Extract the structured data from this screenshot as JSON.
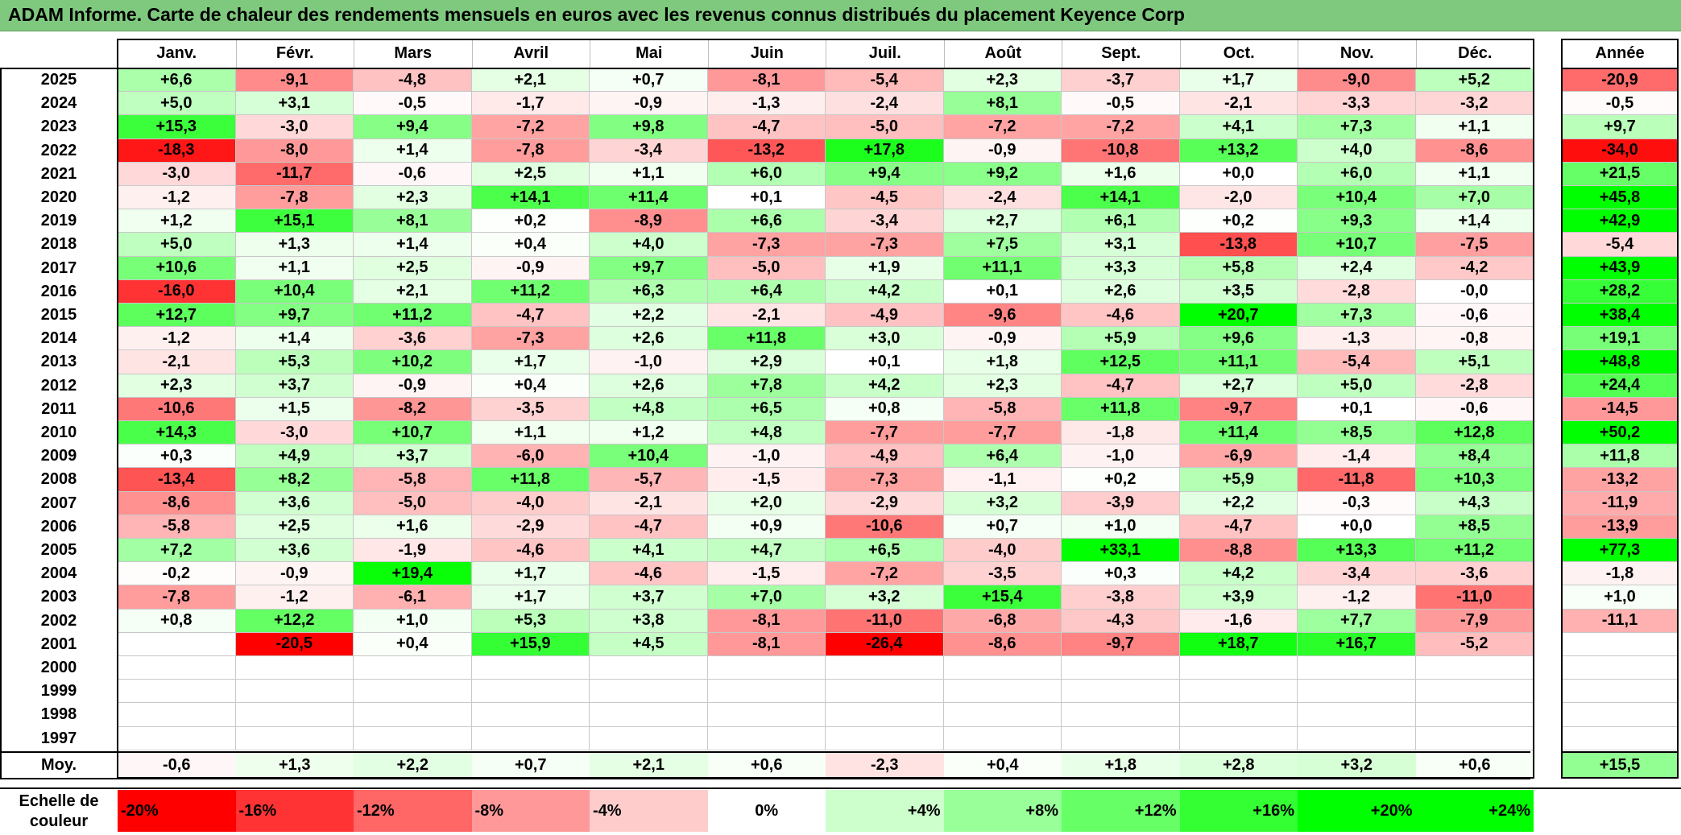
{
  "title": "ADAM Informe. Carte de chaleur des rendements mensuels en euros avec les revenus connus distribués du placement Keyence Corp",
  "chart_data": {
    "type": "heatmap",
    "months": [
      "Janv.",
      "Févr.",
      "Mars",
      "Avril",
      "Mai",
      "Juin",
      "Juil.",
      "Août",
      "Sept.",
      "Oct.",
      "Nov.",
      "Déc."
    ],
    "annual_header": "Année",
    "rows": [
      {
        "year": "2025",
        "values": [
          "+6,6",
          "-9,1",
          "-4,8",
          "+2,1",
          "+0,7",
          "-8,1",
          "-5,4",
          "+2,3",
          "-3,7",
          "+1,7",
          "-9,0",
          "+5,2"
        ],
        "annual": "-20,9"
      },
      {
        "year": "2024",
        "values": [
          "+5,0",
          "+3,1",
          "-0,5",
          "-1,7",
          "-0,9",
          "-1,3",
          "-2,4",
          "+8,1",
          "-0,5",
          "-2,1",
          "-3,3",
          "-3,2"
        ],
        "annual": "-0,5"
      },
      {
        "year": "2023",
        "values": [
          "+15,3",
          "-3,0",
          "+9,4",
          "-7,2",
          "+9,8",
          "-4,7",
          "-5,0",
          "-7,2",
          "-7,2",
          "+4,1",
          "+7,3",
          "+1,1"
        ],
        "annual": "+9,7"
      },
      {
        "year": "2022",
        "values": [
          "-18,3",
          "-8,0",
          "+1,4",
          "-7,8",
          "-3,4",
          "-13,2",
          "+17,8",
          "-0,9",
          "-10,8",
          "+13,2",
          "+4,0",
          "-8,6"
        ],
        "annual": "-34,0"
      },
      {
        "year": "2021",
        "values": [
          "-3,0",
          "-11,7",
          "-0,6",
          "+2,5",
          "+1,1",
          "+6,0",
          "+9,4",
          "+9,2",
          "+1,6",
          "+0,0",
          "+6,0",
          "+1,1"
        ],
        "annual": "+21,5"
      },
      {
        "year": "2020",
        "values": [
          "-1,2",
          "-7,8",
          "+2,3",
          "+14,1",
          "+11,4",
          "+0,1",
          "-4,5",
          "-2,4",
          "+14,1",
          "-2,0",
          "+10,4",
          "+7,0"
        ],
        "annual": "+45,8"
      },
      {
        "year": "2019",
        "values": [
          "+1,2",
          "+15,1",
          "+8,1",
          "+0,2",
          "-8,9",
          "+6,6",
          "-3,4",
          "+2,7",
          "+6,1",
          "+0,2",
          "+9,3",
          "+1,4"
        ],
        "annual": "+42,9"
      },
      {
        "year": "2018",
        "values": [
          "+5,0",
          "+1,3",
          "+1,4",
          "+0,4",
          "+4,0",
          "-7,3",
          "-7,3",
          "+7,5",
          "+3,1",
          "-13,8",
          "+10,7",
          "-7,5"
        ],
        "annual": "-5,4"
      },
      {
        "year": "2017",
        "values": [
          "+10,6",
          "+1,1",
          "+2,5",
          "-0,9",
          "+9,7",
          "-5,0",
          "+1,9",
          "+11,1",
          "+3,3",
          "+5,8",
          "+2,4",
          "-4,2"
        ],
        "annual": "+43,9"
      },
      {
        "year": "2016",
        "values": [
          "-16,0",
          "+10,4",
          "+2,1",
          "+11,2",
          "+6,3",
          "+6,4",
          "+4,2",
          "+0,1",
          "+2,6",
          "+3,5",
          "-2,8",
          "-0,0"
        ],
        "annual": "+28,2"
      },
      {
        "year": "2015",
        "values": [
          "+12,7",
          "+9,7",
          "+11,2",
          "-4,7",
          "+2,2",
          "-2,1",
          "-4,9",
          "-9,6",
          "-4,6",
          "+20,7",
          "+7,3",
          "-0,6"
        ],
        "annual": "+38,4"
      },
      {
        "year": "2014",
        "values": [
          "-1,2",
          "+1,4",
          "-3,6",
          "-7,3",
          "+2,6",
          "+11,8",
          "+3,0",
          "-0,9",
          "+5,9",
          "+9,6",
          "-1,3",
          "-0,8"
        ],
        "annual": "+19,1"
      },
      {
        "year": "2013",
        "values": [
          "-2,1",
          "+5,3",
          "+10,2",
          "+1,7",
          "-1,0",
          "+2,9",
          "+0,1",
          "+1,8",
          "+12,5",
          "+11,1",
          "-5,4",
          "+5,1"
        ],
        "annual": "+48,8"
      },
      {
        "year": "2012",
        "values": [
          "+2,3",
          "+3,7",
          "-0,9",
          "+0,4",
          "+2,6",
          "+7,8",
          "+4,2",
          "+2,3",
          "-4,7",
          "+2,7",
          "+5,0",
          "-2,8"
        ],
        "annual": "+24,4"
      },
      {
        "year": "2011",
        "values": [
          "-10,6",
          "+1,5",
          "-8,2",
          "-3,5",
          "+4,8",
          "+6,5",
          "+0,8",
          "-5,8",
          "+11,8",
          "-9,7",
          "+0,1",
          "-0,6"
        ],
        "annual": "-14,5"
      },
      {
        "year": "2010",
        "values": [
          "+14,3",
          "-3,0",
          "+10,7",
          "+1,1",
          "+1,2",
          "+4,8",
          "-7,7",
          "-7,7",
          "-1,8",
          "+11,4",
          "+8,5",
          "+12,8"
        ],
        "annual": "+50,2"
      },
      {
        "year": "2009",
        "values": [
          "+0,3",
          "+4,9",
          "+3,7",
          "-6,0",
          "+10,4",
          "-1,0",
          "-4,9",
          "+6,4",
          "-1,0",
          "-6,9",
          "-1,4",
          "+8,4"
        ],
        "annual": "+11,8"
      },
      {
        "year": "2008",
        "values": [
          "-13,4",
          "+8,2",
          "-5,8",
          "+11,8",
          "-5,7",
          "-1,5",
          "-7,3",
          "-1,1",
          "+0,2",
          "+5,9",
          "-11,8",
          "+10,3"
        ],
        "annual": "-13,2"
      },
      {
        "year": "2007",
        "values": [
          "-8,6",
          "+3,6",
          "-5,0",
          "-4,0",
          "-2,1",
          "+2,0",
          "-2,9",
          "+3,2",
          "-3,9",
          "+2,2",
          "-0,3",
          "+4,3"
        ],
        "annual": "-11,9"
      },
      {
        "year": "2006",
        "values": [
          "-5,8",
          "+2,5",
          "+1,6",
          "-2,9",
          "-4,7",
          "+0,9",
          "-10,6",
          "+0,7",
          "+1,0",
          "-4,7",
          "+0,0",
          "+8,5"
        ],
        "annual": "-13,9"
      },
      {
        "year": "2005",
        "values": [
          "+7,2",
          "+3,6",
          "-1,9",
          "-4,6",
          "+4,1",
          "+4,7",
          "+6,5",
          "-4,0",
          "+33,1",
          "-8,8",
          "+13,3",
          "+11,2"
        ],
        "annual": "+77,3"
      },
      {
        "year": "2004",
        "values": [
          "-0,2",
          "-0,9",
          "+19,4",
          "+1,7",
          "-4,6",
          "-1,5",
          "-7,2",
          "-3,5",
          "+0,3",
          "+4,2",
          "-3,4",
          "-3,6"
        ],
        "annual": "-1,8"
      },
      {
        "year": "2003",
        "values": [
          "-7,8",
          "-1,2",
          "-6,1",
          "+1,7",
          "+3,7",
          "+7,0",
          "+3,2",
          "+15,4",
          "-3,8",
          "+3,9",
          "-1,2",
          "-11,0"
        ],
        "annual": "+1,0"
      },
      {
        "year": "2002",
        "values": [
          "+0,8",
          "+12,2",
          "+1,0",
          "+5,3",
          "+3,8",
          "-8,1",
          "-11,0",
          "-6,8",
          "-4,3",
          "-1,6",
          "+7,7",
          "-7,9"
        ],
        "annual": "-11,1"
      },
      {
        "year": "2001",
        "values": [
          "",
          "-20,5",
          "+0,4",
          "+15,9",
          "+4,5",
          "-8,1",
          "-26,4",
          "-8,6",
          "-9,7",
          "+18,7",
          "+16,7",
          "-5,2"
        ],
        "annual": ""
      },
      {
        "year": "2000",
        "values": [
          "",
          "",
          "",
          "",
          "",
          "",
          "",
          "",
          "",
          "",
          "",
          ""
        ],
        "annual": ""
      },
      {
        "year": "1999",
        "values": [
          "",
          "",
          "",
          "",
          "",
          "",
          "",
          "",
          "",
          "",
          "",
          ""
        ],
        "annual": ""
      },
      {
        "year": "1998",
        "values": [
          "",
          "",
          "",
          "",
          "",
          "",
          "",
          "",
          "",
          "",
          "",
          ""
        ],
        "annual": ""
      },
      {
        "year": "1997",
        "values": [
          "",
          "",
          "",
          "",
          "",
          "",
          "",
          "",
          "",
          "",
          "",
          ""
        ],
        "annual": ""
      }
    ],
    "average": {
      "label": "Moy.",
      "values": [
        "-0,6",
        "+1,3",
        "+2,2",
        "+0,7",
        "+2,1",
        "+0,6",
        "-2,3",
        "+0,4",
        "+1,8",
        "+2,8",
        "+3,2",
        "+0,6"
      ],
      "annual": "+15,5"
    },
    "scale": {
      "title": "Echelle de couleur",
      "steps": [
        {
          "label": "-20%",
          "value": -20
        },
        {
          "label": "-16%",
          "value": -16
        },
        {
          "label": "-12%",
          "value": -12
        },
        {
          "label": "-8%",
          "value": -8
        },
        {
          "label": "-4%",
          "value": -4
        },
        {
          "label": "0%",
          "value": 0
        },
        {
          "label": "+4%",
          "value": 4
        },
        {
          "label": "+8%",
          "value": 8
        },
        {
          "label": "+12%",
          "value": 12
        },
        {
          "label": "+16%",
          "value": 16
        },
        {
          "label": "+20%",
          "value": 20
        },
        {
          "label": "+24%",
          "value": 24
        }
      ]
    },
    "colors": {
      "negative": "#ff0000",
      "positive": "#00ff00",
      "neutral": "#ffffff",
      "title_bar": "#7fc97f"
    }
  }
}
